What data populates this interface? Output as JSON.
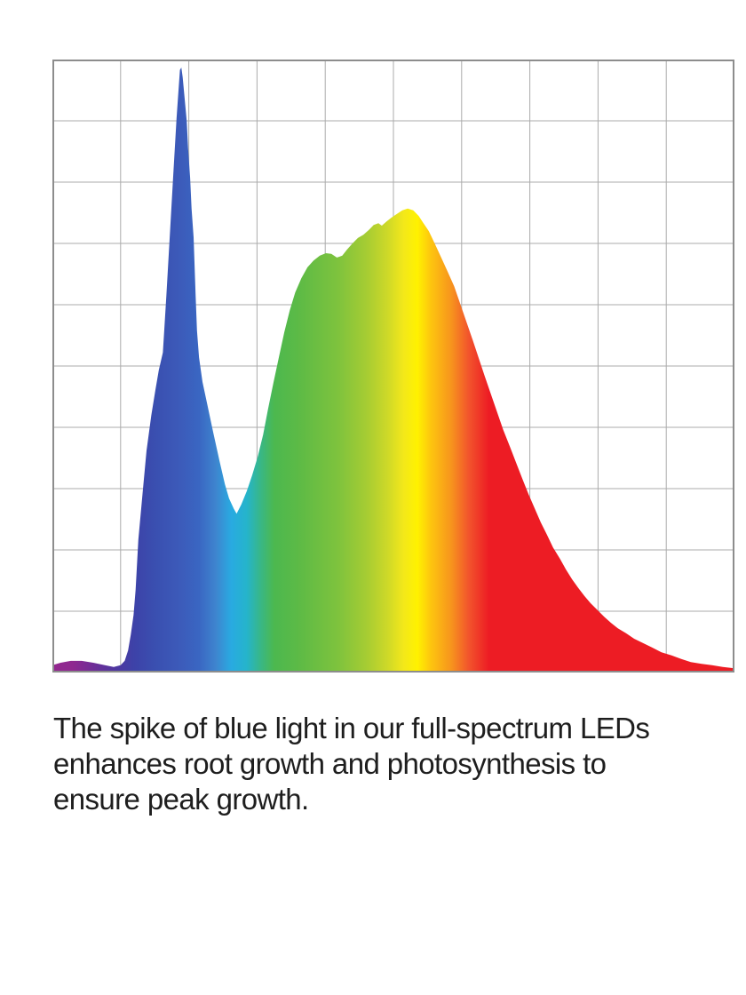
{
  "caption": {
    "lines": [
      "The spike of blue light in our full-spectrum LEDs",
      "enhances root growth and photosynthesis to",
      "ensure peak growth."
    ],
    "full_text": "The spike of blue light in our full-spectrum LEDs enhances root growth and photosynthesis to ensure peak growth.",
    "text_color": "#1e1e1e"
  },
  "chart_data": {
    "type": "area",
    "title": "",
    "xlabel": "",
    "ylabel": "",
    "x_range": [
      0,
      1
    ],
    "y_range": [
      0,
      1
    ],
    "grid": {
      "visible": true,
      "columns": 10,
      "rows": 10,
      "line_color": "#ababab",
      "border_color": "#8d8d8d",
      "background": "#ffffff"
    },
    "legend": {
      "visible": false
    },
    "annotations": {
      "blue_spike": {
        "x": 0.189,
        "intensity": 0.987
      },
      "valley": {
        "x": 0.27,
        "intensity": 0.259
      },
      "green_shoulder": {
        "x": 0.401,
        "intensity": 0.684
      },
      "yellow_peak": {
        "x": 0.521,
        "intensity": 0.757
      },
      "right_tail_end": {
        "x": 1.0,
        "intensity": 0.007
      }
    },
    "series": [
      {
        "name": "full-spectrum-led-output",
        "fill": "horizontal-rainbow-gradient",
        "points": [
          [
            0.0,
            0.012
          ],
          [
            0.012,
            0.016
          ],
          [
            0.027,
            0.019
          ],
          [
            0.043,
            0.019
          ],
          [
            0.06,
            0.016
          ],
          [
            0.077,
            0.012
          ],
          [
            0.09,
            0.009
          ],
          [
            0.1,
            0.012
          ],
          [
            0.106,
            0.019
          ],
          [
            0.111,
            0.036
          ],
          [
            0.115,
            0.062
          ],
          [
            0.119,
            0.094
          ],
          [
            0.122,
            0.135
          ],
          [
            0.126,
            0.217
          ],
          [
            0.132,
            0.29
          ],
          [
            0.138,
            0.362
          ],
          [
            0.145,
            0.42
          ],
          [
            0.151,
            0.461
          ],
          [
            0.156,
            0.493
          ],
          [
            0.162,
            0.522
          ],
          [
            0.167,
            0.614
          ],
          [
            0.172,
            0.71
          ],
          [
            0.177,
            0.807
          ],
          [
            0.182,
            0.904
          ],
          [
            0.185,
            0.952
          ],
          [
            0.187,
            0.983
          ],
          [
            0.189,
            0.987
          ],
          [
            0.191,
            0.971
          ],
          [
            0.194,
            0.935
          ],
          [
            0.197,
            0.899
          ],
          [
            0.199,
            0.855
          ],
          [
            0.202,
            0.807
          ],
          [
            0.204,
            0.757
          ],
          [
            0.207,
            0.71
          ],
          [
            0.21,
            0.614
          ],
          [
            0.212,
            0.558
          ],
          [
            0.215,
            0.514
          ],
          [
            0.22,
            0.474
          ],
          [
            0.227,
            0.438
          ],
          [
            0.236,
            0.391
          ],
          [
            0.245,
            0.345
          ],
          [
            0.253,
            0.307
          ],
          [
            0.259,
            0.284
          ],
          [
            0.266,
            0.267
          ],
          [
            0.27,
            0.259
          ],
          [
            0.277,
            0.274
          ],
          [
            0.285,
            0.296
          ],
          [
            0.293,
            0.322
          ],
          [
            0.301,
            0.352
          ],
          [
            0.309,
            0.388
          ],
          [
            0.316,
            0.429
          ],
          [
            0.324,
            0.472
          ],
          [
            0.332,
            0.514
          ],
          [
            0.34,
            0.555
          ],
          [
            0.348,
            0.591
          ],
          [
            0.356,
            0.62
          ],
          [
            0.365,
            0.643
          ],
          [
            0.374,
            0.661
          ],
          [
            0.383,
            0.672
          ],
          [
            0.392,
            0.68
          ],
          [
            0.401,
            0.684
          ],
          [
            0.409,
            0.683
          ],
          [
            0.417,
            0.677
          ],
          [
            0.425,
            0.68
          ],
          [
            0.432,
            0.69
          ],
          [
            0.44,
            0.7
          ],
          [
            0.448,
            0.709
          ],
          [
            0.456,
            0.714
          ],
          [
            0.464,
            0.722
          ],
          [
            0.471,
            0.73
          ],
          [
            0.478,
            0.733
          ],
          [
            0.483,
            0.729
          ],
          [
            0.49,
            0.736
          ],
          [
            0.497,
            0.742
          ],
          [
            0.505,
            0.748
          ],
          [
            0.513,
            0.754
          ],
          [
            0.521,
            0.757
          ],
          [
            0.529,
            0.754
          ],
          [
            0.537,
            0.745
          ],
          [
            0.544,
            0.733
          ],
          [
            0.552,
            0.72
          ],
          [
            0.561,
            0.699
          ],
          [
            0.57,
            0.677
          ],
          [
            0.579,
            0.655
          ],
          [
            0.589,
            0.63
          ],
          [
            0.598,
            0.601
          ],
          [
            0.607,
            0.572
          ],
          [
            0.616,
            0.543
          ],
          [
            0.625,
            0.513
          ],
          [
            0.634,
            0.483
          ],
          [
            0.643,
            0.454
          ],
          [
            0.652,
            0.425
          ],
          [
            0.661,
            0.396
          ],
          [
            0.671,
            0.368
          ],
          [
            0.68,
            0.342
          ],
          [
            0.689,
            0.316
          ],
          [
            0.698,
            0.291
          ],
          [
            0.707,
            0.268
          ],
          [
            0.716,
            0.245
          ],
          [
            0.725,
            0.225
          ],
          [
            0.734,
            0.204
          ],
          [
            0.744,
            0.186
          ],
          [
            0.753,
            0.168
          ],
          [
            0.762,
            0.152
          ],
          [
            0.771,
            0.138
          ],
          [
            0.78,
            0.125
          ],
          [
            0.789,
            0.113
          ],
          [
            0.798,
            0.103
          ],
          [
            0.809,
            0.091
          ],
          [
            0.819,
            0.081
          ],
          [
            0.829,
            0.072
          ],
          [
            0.841,
            0.064
          ],
          [
            0.853,
            0.055
          ],
          [
            0.866,
            0.048
          ],
          [
            0.879,
            0.041
          ],
          [
            0.893,
            0.033
          ],
          [
            0.908,
            0.028
          ],
          [
            0.922,
            0.022
          ],
          [
            0.936,
            0.017
          ],
          [
            0.952,
            0.014
          ],
          [
            0.967,
            0.012
          ],
          [
            0.983,
            0.009
          ],
          [
            1.0,
            0.007
          ]
        ]
      }
    ],
    "gradient_stops": [
      {
        "offset": 0.0,
        "color": "#93278f"
      },
      {
        "offset": 0.03,
        "color": "#8f2890"
      },
      {
        "offset": 0.06,
        "color": "#6f2d97"
      },
      {
        "offset": 0.09,
        "color": "#50369f"
      },
      {
        "offset": 0.12,
        "color": "#3d42a8"
      },
      {
        "offset": 0.15,
        "color": "#3a4fb0"
      },
      {
        "offset": 0.185,
        "color": "#3c5ab9"
      },
      {
        "offset": 0.215,
        "color": "#3a66c2"
      },
      {
        "offset": 0.24,
        "color": "#3e85cf"
      },
      {
        "offset": 0.262,
        "color": "#29aae1"
      },
      {
        "offset": 0.285,
        "color": "#25b4cb"
      },
      {
        "offset": 0.305,
        "color": "#38b787"
      },
      {
        "offset": 0.325,
        "color": "#4cb84f"
      },
      {
        "offset": 0.36,
        "color": "#5cba46"
      },
      {
        "offset": 0.42,
        "color": "#7fc33d"
      },
      {
        "offset": 0.46,
        "color": "#a5cc33"
      },
      {
        "offset": 0.49,
        "color": "#ccd829"
      },
      {
        "offset": 0.515,
        "color": "#f3e81a"
      },
      {
        "offset": 0.535,
        "color": "#fff200"
      },
      {
        "offset": 0.555,
        "color": "#fdc50f"
      },
      {
        "offset": 0.585,
        "color": "#f7941d"
      },
      {
        "offset": 0.61,
        "color": "#f2552c"
      },
      {
        "offset": 0.64,
        "color": "#ed1c24"
      },
      {
        "offset": 1.0,
        "color": "#ed1c24"
      }
    ]
  }
}
